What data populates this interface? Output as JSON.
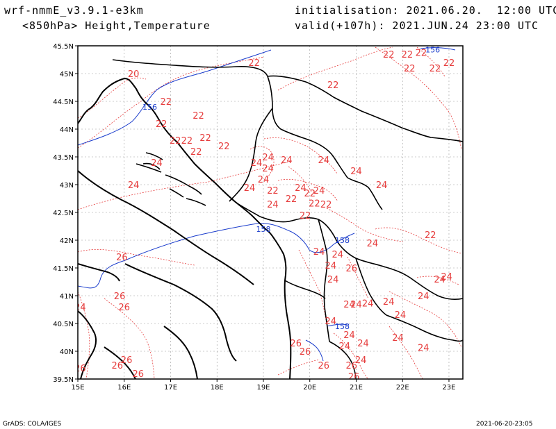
{
  "header": {
    "model": "wrf-nmmE_v3.9.1-e3km",
    "field": "<850hPa> Height,Temperature",
    "init": "initialisation: 2021.06.20.  12:00 UTC",
    "valid": "valid(+107h): 2021.JUN.24 23:00 UTC"
  },
  "footer": {
    "left": "GrADS: COLA/IGES",
    "right": "2021-06-20-23:05"
  },
  "colors": {
    "temperature": "#e63c3c",
    "height": "#1a3ccc",
    "coast": "#000000",
    "grid": "#9a9a9a"
  },
  "map": {
    "lon_ticks": [
      "15E",
      "16E",
      "17E",
      "18E",
      "19E",
      "20E",
      "21E",
      "22E",
      "23E"
    ],
    "lat_ticks": [
      "45.5N",
      "45N",
      "44.5N",
      "44N",
      "43.5N",
      "43N",
      "42.5N",
      "42N",
      "41.5N",
      "41N",
      "40.5N",
      "40N",
      "39.5N"
    ],
    "lon_range": [
      15,
      23.3
    ],
    "lat_range": [
      39.5,
      45.5
    ],
    "temperature_labels": [
      {
        "t": "20",
        "lon": 16.2,
        "lat": 45.0
      },
      {
        "t": "22",
        "lon": 18.8,
        "lat": 45.2
      },
      {
        "t": "22",
        "lon": 21.7,
        "lat": 45.35
      },
      {
        "t": "22",
        "lon": 22.1,
        "lat": 45.35
      },
      {
        "t": "22",
        "lon": 22.4,
        "lat": 45.38
      },
      {
        "t": "22",
        "lon": 22.15,
        "lat": 45.1
      },
      {
        "t": "22",
        "lon": 22.7,
        "lat": 45.1
      },
      {
        "t": "22",
        "lon": 23.0,
        "lat": 45.2
      },
      {
        "t": "22",
        "lon": 20.5,
        "lat": 44.8
      },
      {
        "t": "22",
        "lon": 16.9,
        "lat": 44.5
      },
      {
        "t": "22",
        "lon": 17.6,
        "lat": 44.25
      },
      {
        "t": "22",
        "lon": 16.8,
        "lat": 44.1
      },
      {
        "t": "22",
        "lon": 17.1,
        "lat": 43.8
      },
      {
        "t": "22",
        "lon": 17.35,
        "lat": 43.8
      },
      {
        "t": "22",
        "lon": 17.75,
        "lat": 43.85
      },
      {
        "t": "22",
        "lon": 18.15,
        "lat": 43.7
      },
      {
        "t": "22",
        "lon": 17.55,
        "lat": 43.6
      },
      {
        "t": "24",
        "lon": 16.7,
        "lat": 43.4
      },
      {
        "t": "24",
        "lon": 16.2,
        "lat": 43.0
      },
      {
        "t": "24",
        "lon": 18.85,
        "lat": 43.4
      },
      {
        "t": "24",
        "lon": 19.1,
        "lat": 43.5
      },
      {
        "t": "24",
        "lon": 19.1,
        "lat": 43.3
      },
      {
        "t": "24",
        "lon": 19.0,
        "lat": 43.1
      },
      {
        "t": "24",
        "lon": 18.7,
        "lat": 42.95
      },
      {
        "t": "24",
        "lon": 19.5,
        "lat": 43.45
      },
      {
        "t": "24",
        "lon": 20.3,
        "lat": 43.45
      },
      {
        "t": "24",
        "lon": 21.0,
        "lat": 43.25
      },
      {
        "t": "24",
        "lon": 21.55,
        "lat": 43.0
      },
      {
        "t": "22",
        "lon": 19.2,
        "lat": 42.9
      },
      {
        "t": "24",
        "lon": 19.8,
        "lat": 42.95
      },
      {
        "t": "22",
        "lon": 20.0,
        "lat": 42.85
      },
      {
        "t": "24",
        "lon": 20.2,
        "lat": 42.9
      },
      {
        "t": "22",
        "lon": 19.6,
        "lat": 42.75
      },
      {
        "t": "22",
        "lon": 20.1,
        "lat": 42.67
      },
      {
        "t": "22",
        "lon": 20.35,
        "lat": 42.65
      },
      {
        "t": "24",
        "lon": 19.2,
        "lat": 42.65
      },
      {
        "t": "22",
        "lon": 19.9,
        "lat": 42.45
      },
      {
        "t": "22",
        "lon": 22.6,
        "lat": 42.1
      },
      {
        "t": "24",
        "lon": 21.35,
        "lat": 41.95
      },
      {
        "t": "24",
        "lon": 20.2,
        "lat": 41.8
      },
      {
        "t": "24",
        "lon": 20.6,
        "lat": 41.75
      },
      {
        "t": "24",
        "lon": 20.45,
        "lat": 41.55
      },
      {
        "t": "26",
        "lon": 20.9,
        "lat": 41.5
      },
      {
        "t": "24",
        "lon": 20.5,
        "lat": 41.3
      },
      {
        "t": "24",
        "lon": 22.8,
        "lat": 41.3
      },
      {
        "t": "24",
        "lon": 22.95,
        "lat": 41.35
      },
      {
        "t": "26",
        "lon": 15.95,
        "lat": 41.7
      },
      {
        "t": "24",
        "lon": 22.45,
        "lat": 41.0
      },
      {
        "t": "24",
        "lon": 21.7,
        "lat": 40.9
      },
      {
        "t": "24",
        "lon": 21.25,
        "lat": 40.87
      },
      {
        "t": "24",
        "lon": 20.85,
        "lat": 40.85
      },
      {
        "t": "24",
        "lon": 21.0,
        "lat": 40.85
      },
      {
        "t": "24",
        "lon": 21.95,
        "lat": 40.66
      },
      {
        "t": "24",
        "lon": 20.45,
        "lat": 40.55
      },
      {
        "t": "24",
        "lon": 20.85,
        "lat": 40.3
      },
      {
        "t": "24",
        "lon": 21.15,
        "lat": 40.15
      },
      {
        "t": "24",
        "lon": 20.75,
        "lat": 40.1
      },
      {
        "t": "24",
        "lon": 21.1,
        "lat": 39.85
      },
      {
        "t": "24",
        "lon": 21.9,
        "lat": 40.25
      },
      {
        "t": "24",
        "lon": 22.45,
        "lat": 40.07
      },
      {
        "t": "24",
        "lon": 15.05,
        "lat": 40.8
      },
      {
        "t": "26",
        "lon": 15.9,
        "lat": 41.0
      },
      {
        "t": "26",
        "lon": 16.0,
        "lat": 40.8
      },
      {
        "t": "26",
        "lon": 19.7,
        "lat": 40.15
      },
      {
        "t": "26",
        "lon": 19.9,
        "lat": 40.0
      },
      {
        "t": "26",
        "lon": 20.3,
        "lat": 39.75
      },
      {
        "t": "26",
        "lon": 20.9,
        "lat": 39.75
      },
      {
        "t": "26",
        "lon": 16.05,
        "lat": 39.85
      },
      {
        "t": "26",
        "lon": 15.85,
        "lat": 39.75
      },
      {
        "t": "26",
        "lon": 16.3,
        "lat": 39.6
      },
      {
        "t": "26",
        "lon": 15.05,
        "lat": 39.7
      },
      {
        "t": "26",
        "lon": 20.95,
        "lat": 39.55
      }
    ],
    "height_labels": [
      {
        "t": "156",
        "lon": 22.65,
        "lat": 45.43
      },
      {
        "t": "156",
        "lon": 16.55,
        "lat": 44.4
      },
      {
        "t": "158",
        "lon": 19.0,
        "lat": 42.2
      },
      {
        "t": "158",
        "lon": 20.7,
        "lat": 42.0
      },
      {
        "t": "158",
        "lon": 20.7,
        "lat": 40.45
      }
    ]
  }
}
